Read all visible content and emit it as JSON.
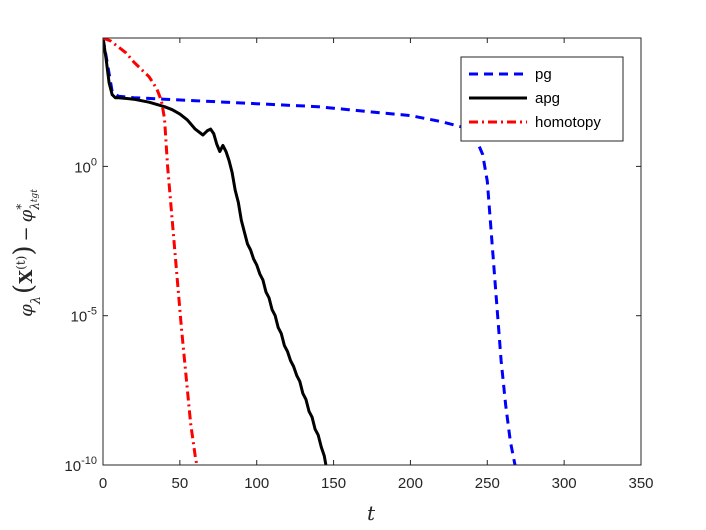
{
  "chart_data": {
    "type": "line",
    "xlabel": "t",
    "ylabel": "φ_λ(X^(t)) − φ*_λ_tgt",
    "ylabel_parts": {
      "phi": "φ",
      "lambda": "λ",
      "X": "X",
      "t": "(t)",
      "minus": "−",
      "star": "*",
      "tgt": "tgt"
    },
    "xlim": [
      0,
      350
    ],
    "ylim_log10": [
      -10,
      4.3
    ],
    "y_scale": "log",
    "x_ticks": [
      0,
      50,
      100,
      150,
      200,
      250,
      300,
      350
    ],
    "x_tick_labels": [
      "0",
      "50",
      "100",
      "150",
      "200",
      "250",
      "300",
      "350"
    ],
    "y_ticks_log10": [
      0,
      -5,
      -10
    ],
    "y_tick_labels": [
      {
        "base": "10",
        "exp": "0"
      },
      {
        "base": "10",
        "exp": "-5"
      },
      {
        "base": "10",
        "exp": "-10"
      }
    ],
    "grid": false,
    "legend_position": "top-right",
    "series": [
      {
        "name": "pg",
        "color": "#0000ff",
        "style": "dashed",
        "x": [
          0,
          3,
          6,
          10,
          20,
          40,
          60,
          80,
          100,
          120,
          140,
          160,
          180,
          200,
          220,
          235,
          242,
          247,
          250,
          253,
          256,
          259,
          262,
          265,
          268
        ],
        "y_log10": [
          4.3,
          3.4,
          2.5,
          2.35,
          2.3,
          2.25,
          2.2,
          2.15,
          2.1,
          2.05,
          2.0,
          1.9,
          1.8,
          1.7,
          1.5,
          1.3,
          1.0,
          0.4,
          -0.5,
          -2.5,
          -4.5,
          -6.5,
          -8.0,
          -9.2,
          -10.0
        ]
      },
      {
        "name": "apg",
        "color": "#000000",
        "style": "solid",
        "x": [
          0,
          2,
          4,
          6,
          8,
          10,
          20,
          30,
          40,
          45,
          50,
          55,
          60,
          65,
          68,
          70,
          72,
          74,
          76,
          78,
          80,
          82,
          84,
          86,
          88,
          90,
          92,
          94,
          96,
          98,
          100,
          102,
          104,
          106,
          108,
          110,
          112,
          114,
          116,
          118,
          120,
          122,
          124,
          126,
          128,
          130,
          132,
          134,
          136,
          138,
          140,
          142,
          144,
          145
        ],
        "y_log10": [
          4.3,
          3.6,
          2.8,
          2.4,
          2.3,
          2.3,
          2.25,
          2.15,
          2.0,
          1.9,
          1.75,
          1.55,
          1.25,
          1.05,
          1.2,
          1.25,
          1.1,
          0.75,
          0.5,
          0.7,
          0.5,
          0.2,
          -0.2,
          -0.8,
          -1.2,
          -1.8,
          -2.2,
          -2.6,
          -2.8,
          -3.1,
          -3.3,
          -3.6,
          -3.8,
          -4.2,
          -4.4,
          -4.8,
          -5.0,
          -5.4,
          -5.6,
          -6.0,
          -6.2,
          -6.5,
          -6.7,
          -7.0,
          -7.2,
          -7.6,
          -7.8,
          -8.2,
          -8.4,
          -8.8,
          -9.0,
          -9.4,
          -9.7,
          -10.0
        ]
      },
      {
        "name": "homotopy",
        "color": "#ff0000",
        "style": "dashdot",
        "x": [
          0,
          5,
          10,
          15,
          20,
          25,
          30,
          35,
          38,
          40,
          42,
          45,
          48,
          51,
          54,
          57,
          60,
          61
        ],
        "y_log10": [
          4.3,
          4.2,
          4.0,
          3.8,
          3.5,
          3.25,
          3.0,
          2.6,
          2.2,
          1.6,
          0.0,
          -1.8,
          -3.6,
          -5.4,
          -7.0,
          -8.6,
          -9.7,
          -10.0
        ]
      }
    ]
  }
}
